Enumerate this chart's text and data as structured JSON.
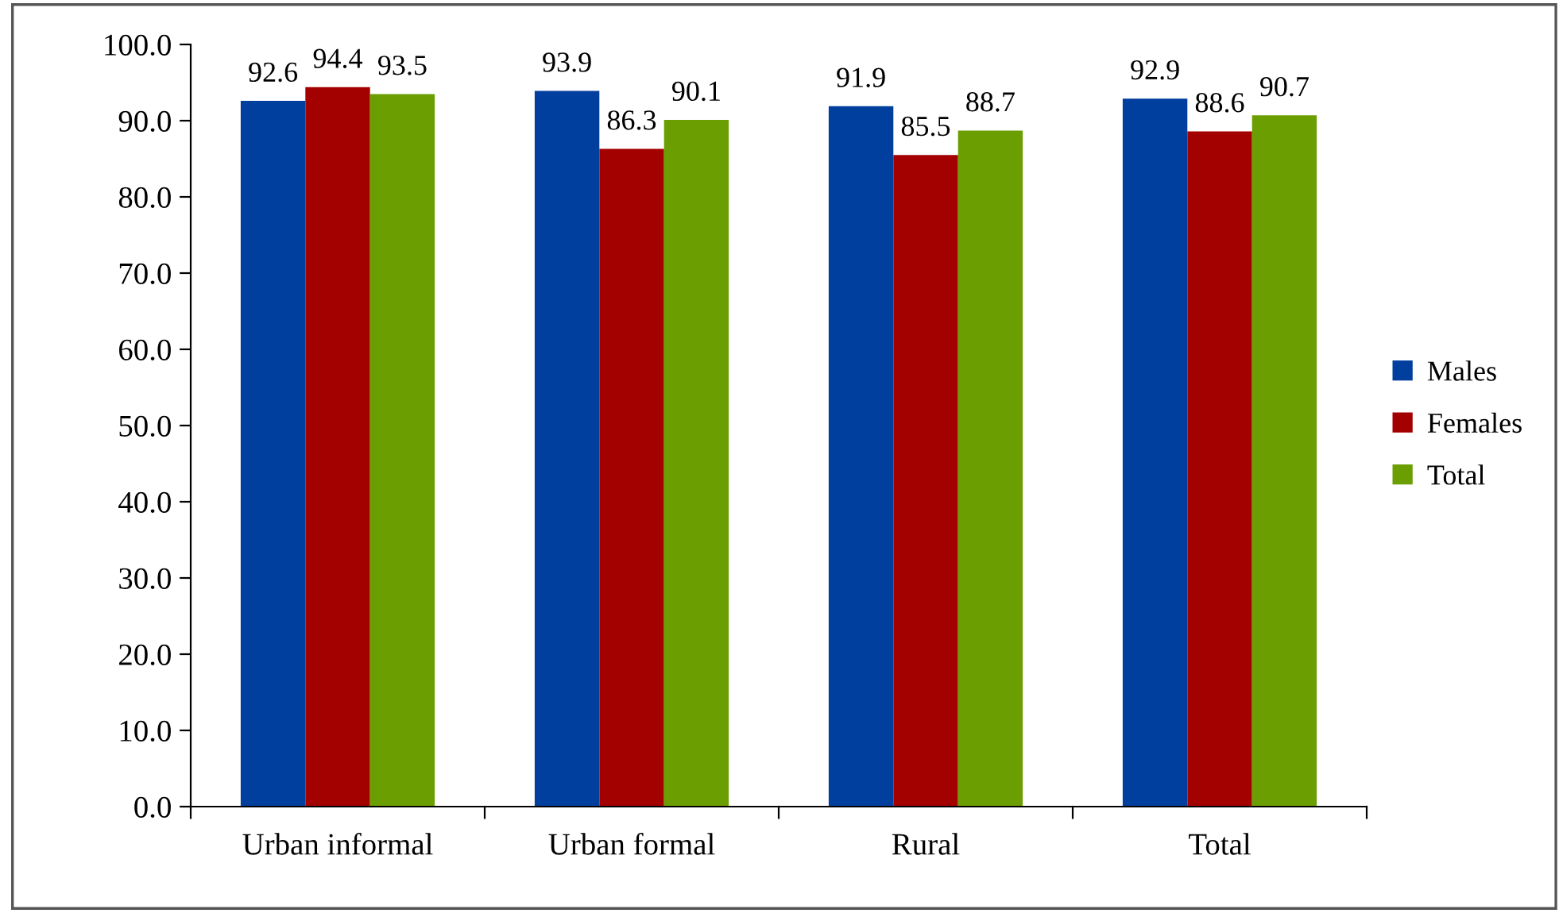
{
  "chart_data": {
    "type": "bar",
    "categories": [
      "Urban informal",
      "Urban formal",
      "Rural",
      "Total"
    ],
    "series": [
      {
        "name": "Males",
        "color": "#003f9e",
        "values": [
          92.6,
          93.9,
          91.9,
          92.9
        ]
      },
      {
        "name": "Females",
        "color": "#a30000",
        "values": [
          94.4,
          86.3,
          85.5,
          88.6
        ]
      },
      {
        "name": "Total",
        "color": "#6b9e00",
        "values": [
          93.5,
          90.1,
          88.7,
          90.7
        ]
      }
    ],
    "ylim": [
      0,
      100
    ],
    "yticks": [
      {
        "value": 0,
        "label": "0.0"
      },
      {
        "value": 10,
        "label": "10.0"
      },
      {
        "value": 20,
        "label": "20.0"
      },
      {
        "value": 30,
        "label": "30.0"
      },
      {
        "value": 40,
        "label": "40.0"
      },
      {
        "value": 50,
        "label": "50.0"
      },
      {
        "value": 60,
        "label": "60.0"
      },
      {
        "value": 70,
        "label": "70.0"
      },
      {
        "value": 80,
        "label": "80.0"
      },
      {
        "value": 90,
        "label": "90.0"
      },
      {
        "value": 100,
        "label": "100.0"
      }
    ],
    "data_labels": true,
    "legend": "right",
    "grid": false
  }
}
